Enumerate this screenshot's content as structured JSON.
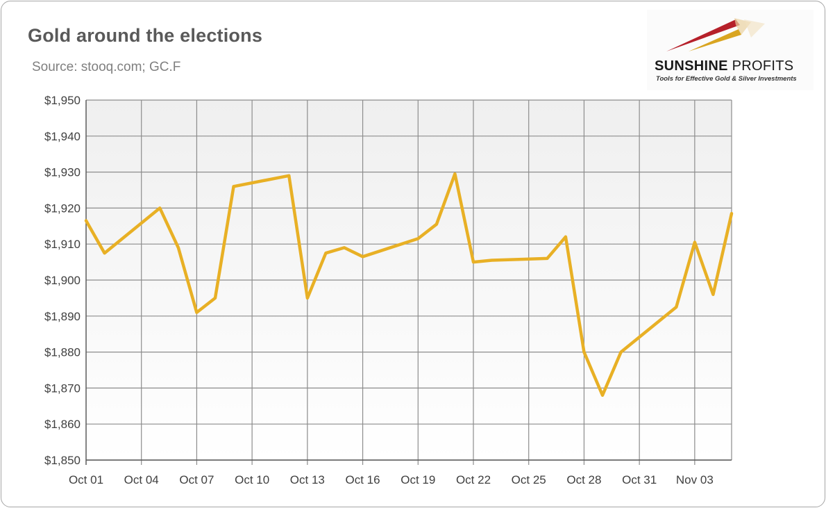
{
  "title": "Gold around the elections",
  "subtitle": "Source: stooq.com; GC.F",
  "logo": {
    "brand_bold": "SUNSHINE",
    "brand_rest": " PROFITS",
    "tagline": "Tools for Effective Gold & Silver Investments"
  },
  "chart_data": {
    "type": "line",
    "title": "Gold around the elections",
    "xlabel": "",
    "ylabel": "",
    "ylim": [
      1850,
      1950
    ],
    "y_ticks": [
      "$1,950",
      "$1,940",
      "$1,930",
      "$1,920",
      "$1,910",
      "$1,900",
      "$1,890",
      "$1,880",
      "$1,870",
      "$1,860",
      "$1,850"
    ],
    "x_tick_labels": [
      "Oct 01",
      "Oct 04",
      "Oct 07",
      "Oct 10",
      "Oct 13",
      "Oct 16",
      "Oct 19",
      "Oct 22",
      "Oct 25",
      "Oct 28",
      "Oct 31",
      "Nov 03"
    ],
    "grid": true,
    "legend": "none",
    "line_color": "#e8b025",
    "series": [
      {
        "x": [
          "Oct 01",
          "Oct 02",
          "Oct 05",
          "Oct 06",
          "Oct 07",
          "Oct 08",
          "Oct 09",
          "Oct 12",
          "Oct 13",
          "Oct 14",
          "Oct 15",
          "Oct 16",
          "Oct 19",
          "Oct 20",
          "Oct 21",
          "Oct 22",
          "Oct 23",
          "Oct 26",
          "Oct 27",
          "Oct 28",
          "Oct 29",
          "Oct 30",
          "Nov 02",
          "Nov 03",
          "Nov 04",
          "Nov 05"
        ],
        "values": [
          1916.5,
          1907.5,
          1920,
          1909,
          1891,
          1895,
          1926,
          1929,
          1895,
          1907.5,
          1909,
          1906.5,
          1911.5,
          1915.5,
          1929.5,
          1905,
          1905.5,
          1906,
          1912,
          1880,
          1868,
          1880,
          1892.5,
          1910.5,
          1896,
          1918.5
        ]
      }
    ]
  }
}
